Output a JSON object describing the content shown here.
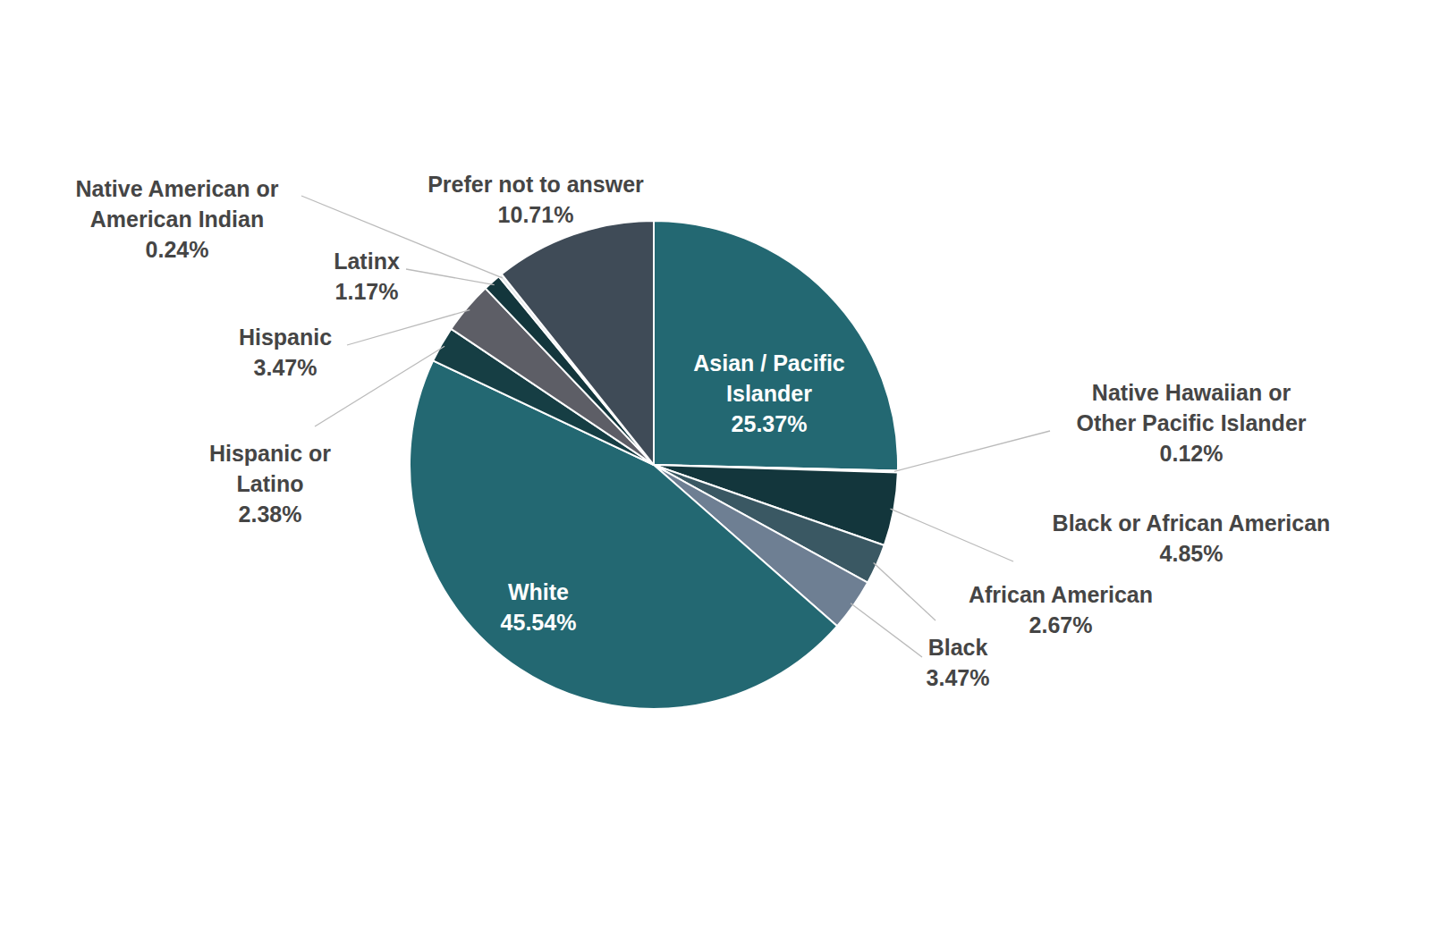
{
  "chart_data": {
    "type": "pie",
    "categories": [
      "Asian / Pacific Islander",
      "Native Hawaiian or Other Pacific Islander",
      "Black or African American",
      "African American",
      "Black",
      "White",
      "Hispanic or Latino",
      "Hispanic",
      "Latinx",
      "Native American or American Indian",
      "Prefer not to answer"
    ],
    "values": [
      25.37,
      0.12,
      4.85,
      2.67,
      3.47,
      45.54,
      2.38,
      3.47,
      1.17,
      0.24,
      10.71
    ],
    "value_labels": [
      "25.37%",
      "0.12%",
      "4.85%",
      "2.67%",
      "3.47%",
      "45.54%",
      "2.38%",
      "3.47%",
      "1.17%",
      "0.24%",
      "10.71%"
    ],
    "colors": [
      "#236872",
      "#2a6a74",
      "#13363c",
      "#3a5863",
      "#6e7f93",
      "#236872",
      "#163e44",
      "#5d5e66",
      "#13363c",
      "#e4e8ea",
      "#3f4b57"
    ],
    "data_labels": true
  }
}
